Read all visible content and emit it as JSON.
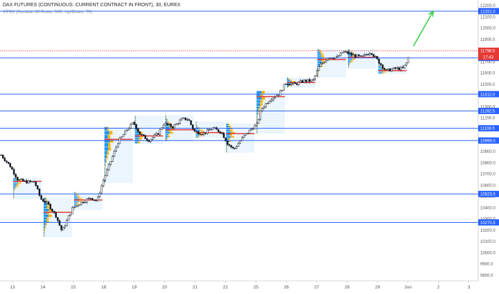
{
  "header": {
    "title": "DAX FUTURES (CONTINUOUS: CURRENT CONTRACT IN FRONT), 30, EUREX",
    "indicator": "VPSV (Number Of Rows, 500, Up/Down, 70)"
  },
  "chart_data": {
    "type": "candlestick",
    "x_tick_labels": [
      "13",
      "14",
      "15",
      "18",
      "19",
      "20",
      "21",
      "22",
      "25",
      "26",
      "27",
      "28",
      "29",
      "Jun",
      "2",
      "3"
    ],
    "y_tick_values": [
      9800,
      9900,
      10000,
      10100,
      10200,
      10300,
      10400,
      10500,
      10600,
      10700,
      10800,
      10900,
      11000,
      11100,
      11200,
      11300,
      11400,
      11500,
      11600,
      11700,
      11800,
      11900,
      12000,
      12100,
      12200
    ],
    "ylim": [
      9750,
      12250
    ],
    "horizontal_levels": [
      12151.0,
      11734.5,
      11412.0,
      11262.5,
      11108.5,
      10999.0,
      10523.5,
      10270.5
    ],
    "last_price": {
      "value": 11798.5,
      "label": "11798.5",
      "countdown": "17:43",
      "color": "#e53935"
    },
    "colors": {
      "level_line": "#2962ff",
      "level_label_bg": "#2962ff",
      "poc_line": "#e53935",
      "profile_up": "#2196f3",
      "profile_down": "#ffb300",
      "profile_bg": "#e3f2fd",
      "candle": "#131722",
      "arrow": "#2ecc40"
    },
    "session_profiles": [
      {
        "start_day": 0,
        "end_day": 1,
        "low": 10480,
        "high": 10665,
        "poc": 10635
      },
      {
        "start_day": 1,
        "end_day": 2,
        "low": 10140,
        "high": 10490,
        "poc": 10360
      },
      {
        "start_day": 2,
        "end_day": 3,
        "low": 10380,
        "high": 10540,
        "poc": 10470
      },
      {
        "start_day": 3,
        "end_day": 4,
        "low": 10620,
        "high": 11120,
        "poc": 11010
      },
      {
        "start_day": 4,
        "end_day": 5,
        "low": 10970,
        "high": 11220,
        "poc": 11040
      },
      {
        "start_day": 5,
        "end_day": 6,
        "low": 10990,
        "high": 11225,
        "poc": 11095
      },
      {
        "start_day": 6,
        "end_day": 7,
        "low": 11020,
        "high": 11170,
        "poc": 11070
      },
      {
        "start_day": 7,
        "end_day": 8,
        "low": 10890,
        "high": 11150,
        "poc": 11060
      },
      {
        "start_day": 8,
        "end_day": 9,
        "low": 11060,
        "high": 11440,
        "poc": 11390
      },
      {
        "start_day": 9,
        "end_day": 10,
        "low": 11470,
        "high": 11560,
        "poc": 11515
      },
      {
        "start_day": 10,
        "end_day": 11,
        "low": 11560,
        "high": 11810,
        "poc": 11720
      },
      {
        "start_day": 11,
        "end_day": 12,
        "low": 11640,
        "high": 11810,
        "poc": 11740
      },
      {
        "start_day": 12,
        "end_day": 13,
        "low": 11590,
        "high": 11740,
        "poc": 11620
      }
    ],
    "price_path": [
      {
        "day": -0.35,
        "price": 10870
      },
      {
        "day": -0.05,
        "price": 10770
      },
      {
        "day": 0.2,
        "price": 10650
      },
      {
        "day": 0.5,
        "price": 10630
      },
      {
        "day": 0.75,
        "price": 10630
      },
      {
        "day": 0.95,
        "price": 10480
      },
      {
        "day": 1.2,
        "price": 10430
      },
      {
        "day": 1.45,
        "price": 10330
      },
      {
        "day": 1.65,
        "price": 10190
      },
      {
        "day": 1.8,
        "price": 10280
      },
      {
        "day": 2.0,
        "price": 10400
      },
      {
        "day": 2.3,
        "price": 10450
      },
      {
        "day": 2.6,
        "price": 10490
      },
      {
        "day": 2.8,
        "price": 10460
      },
      {
        "day": 3.0,
        "price": 10640
      },
      {
        "day": 3.2,
        "price": 10780
      },
      {
        "day": 3.5,
        "price": 10990
      },
      {
        "day": 3.8,
        "price": 11100
      },
      {
        "day": 4.0,
        "price": 11160
      },
      {
        "day": 4.2,
        "price": 11060
      },
      {
        "day": 4.5,
        "price": 11000
      },
      {
        "day": 4.8,
        "price": 11060
      },
      {
        "day": 5.0,
        "price": 11150
      },
      {
        "day": 5.3,
        "price": 11120
      },
      {
        "day": 5.6,
        "price": 11190
      },
      {
        "day": 5.8,
        "price": 11190
      },
      {
        "day": 6.0,
        "price": 11080
      },
      {
        "day": 6.3,
        "price": 11060
      },
      {
        "day": 6.6,
        "price": 11110
      },
      {
        "day": 6.9,
        "price": 11070
      },
      {
        "day": 7.1,
        "price": 10970
      },
      {
        "day": 7.3,
        "price": 10920
      },
      {
        "day": 7.6,
        "price": 11030
      },
      {
        "day": 7.9,
        "price": 11110
      },
      {
        "day": 8.05,
        "price": 11140
      },
      {
        "day": 8.2,
        "price": 11280
      },
      {
        "day": 8.5,
        "price": 11370
      },
      {
        "day": 8.8,
        "price": 11420
      },
      {
        "day": 9.0,
        "price": 11510
      },
      {
        "day": 9.3,
        "price": 11500
      },
      {
        "day": 9.6,
        "price": 11530
      },
      {
        "day": 9.9,
        "price": 11530
      },
      {
        "day": 10.1,
        "price": 11660
      },
      {
        "day": 10.4,
        "price": 11740
      },
      {
        "day": 10.7,
        "price": 11740
      },
      {
        "day": 10.9,
        "price": 11790
      },
      {
        "day": 11.2,
        "price": 11760
      },
      {
        "day": 11.5,
        "price": 11740
      },
      {
        "day": 11.8,
        "price": 11790
      },
      {
        "day": 12.0,
        "price": 11720
      },
      {
        "day": 12.3,
        "price": 11620
      },
      {
        "day": 12.6,
        "price": 11640
      },
      {
        "day": 12.85,
        "price": 11640
      },
      {
        "day": 13.0,
        "price": 11700
      },
      {
        "day": 13.08,
        "price": 11798.5
      }
    ],
    "arrow": {
      "from": {
        "day": 13.2,
        "price": 11840
      },
      "to": {
        "day": 13.85,
        "price": 12150
      }
    },
    "grid": false
  }
}
